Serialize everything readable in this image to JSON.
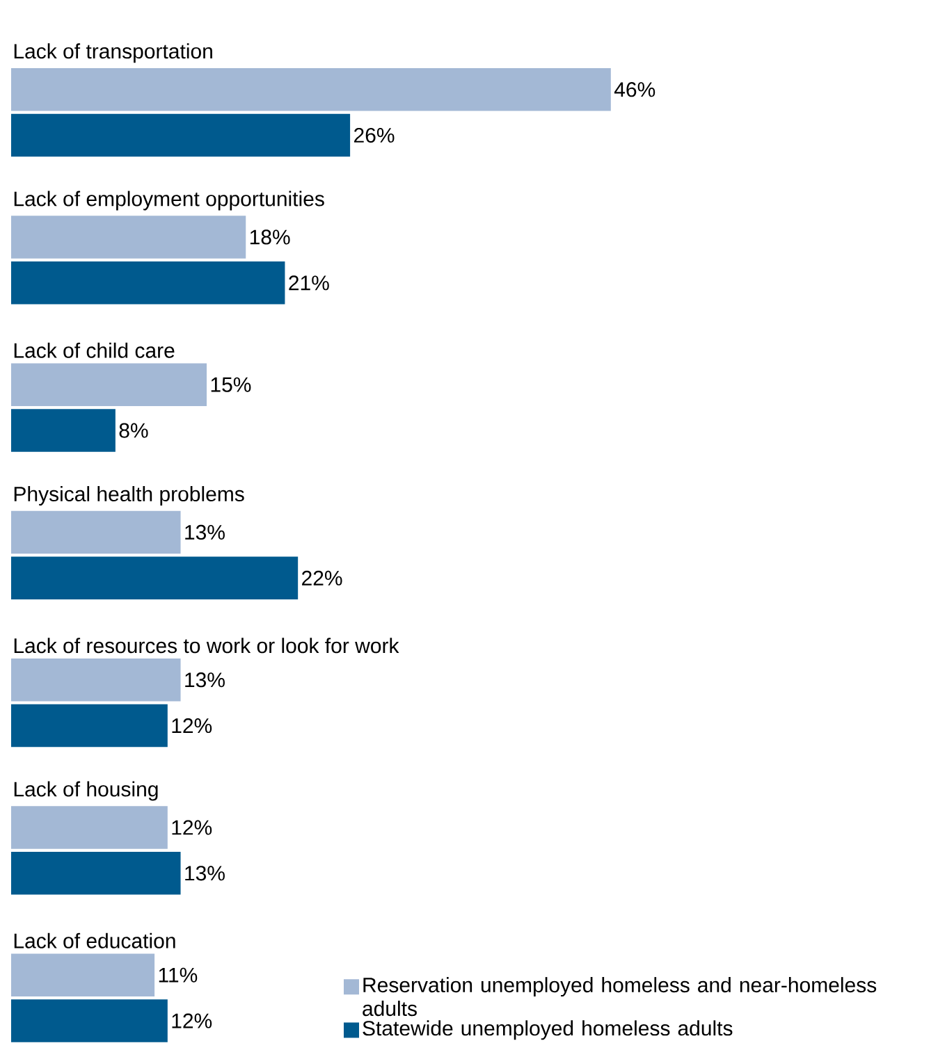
{
  "chart_data": {
    "type": "bar",
    "orientation": "horizontal",
    "categories": [
      "Lack of transportation",
      "Lack of employment opportunities",
      "Lack of child care",
      "Physical health problems",
      "Lack of resources to work or look for work",
      "Lack of housing",
      "Lack of education"
    ],
    "series": [
      {
        "name": "Reservation unemployed homeless and near-homeless adults",
        "color": "#a3b8d5",
        "values": [
          46,
          18,
          15,
          13,
          13,
          12,
          11
        ],
        "value_labels": [
          "46%",
          "18%",
          "15%",
          "13%",
          "13%",
          "12%",
          "11%"
        ]
      },
      {
        "name": "Statewide unemployed homeless adults",
        "color": "#005a8e",
        "values": [
          26,
          21,
          8,
          22,
          12,
          13,
          12
        ],
        "value_labels": [
          "26%",
          "21%",
          "8%",
          "22%",
          "12%",
          "13%",
          "12%"
        ]
      }
    ],
    "legend": "bottom right"
  }
}
